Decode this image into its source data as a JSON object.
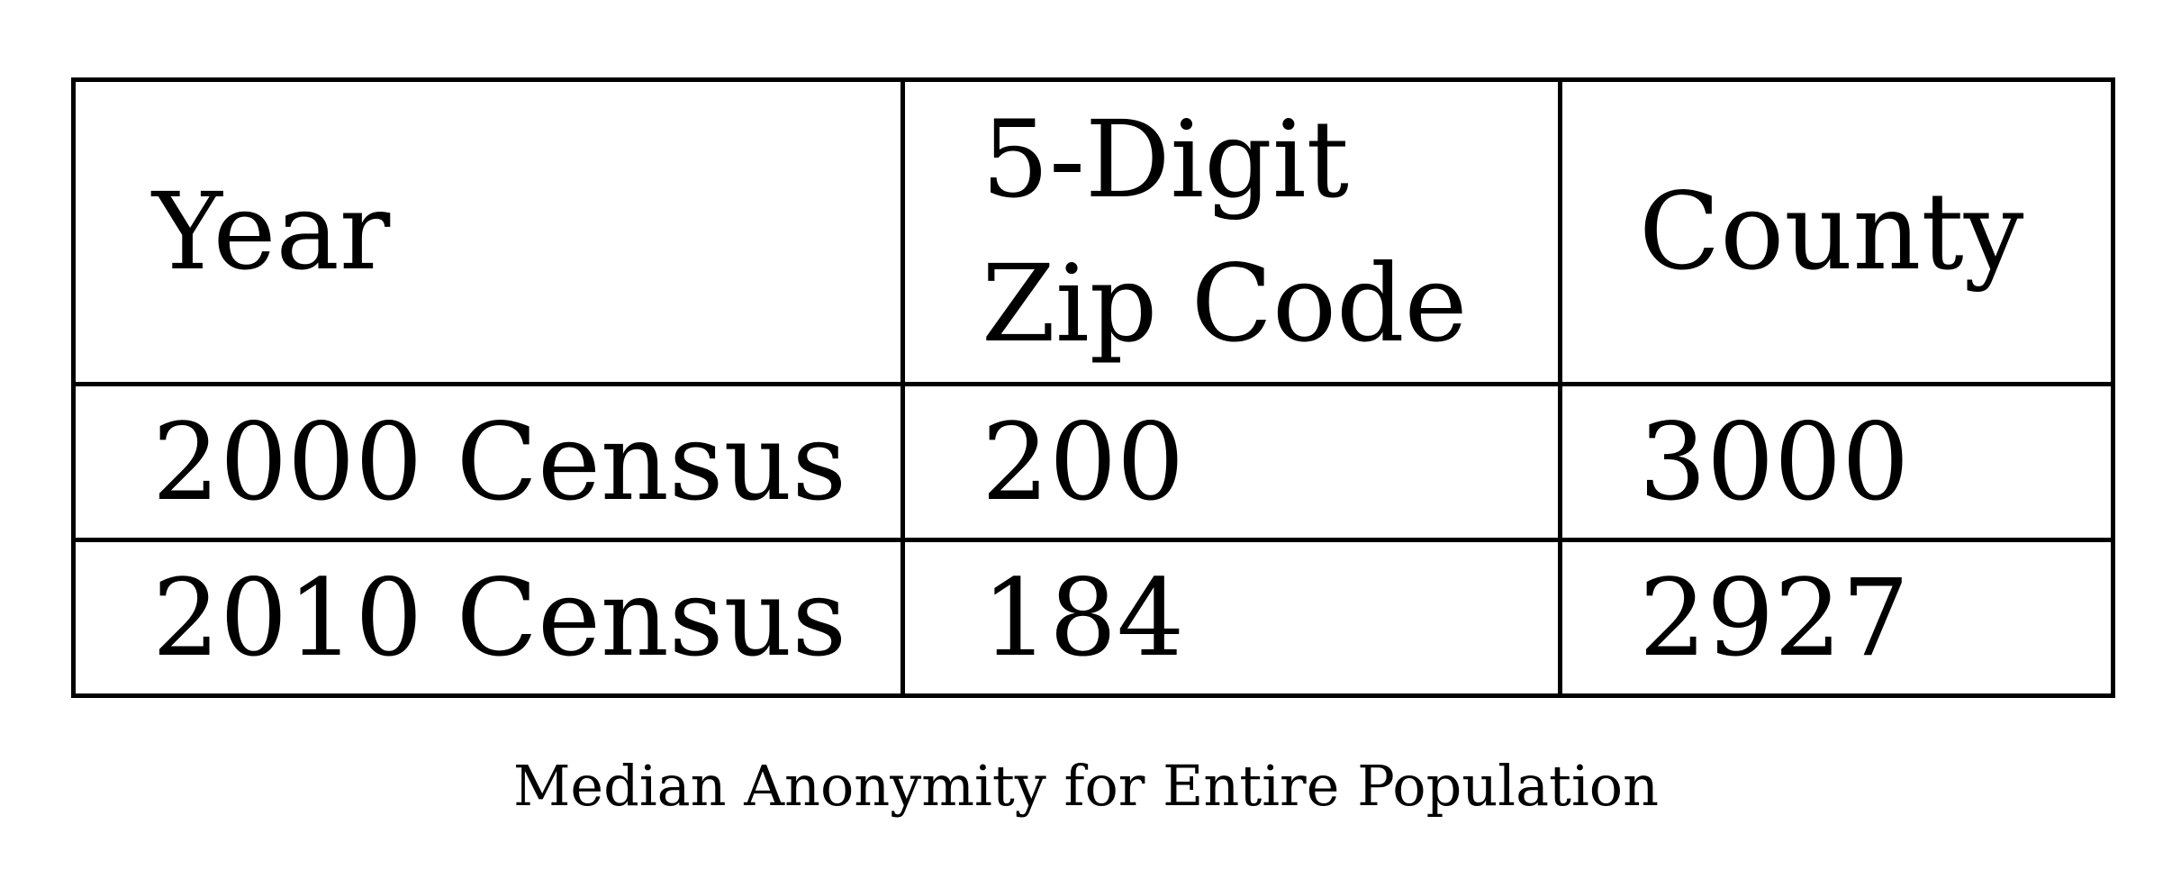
{
  "table": {
    "headers": [
      {
        "lines": [
          "Year"
        ]
      },
      {
        "lines": [
          "5-Digit",
          "Zip Code"
        ]
      },
      {
        "lines": [
          "County"
        ]
      }
    ],
    "rows": [
      [
        "2000 Census",
        "200",
        "3000"
      ],
      [
        "2010 Census",
        "184",
        "2927"
      ]
    ]
  },
  "caption": "Median Anonymity for Entire Population"
}
